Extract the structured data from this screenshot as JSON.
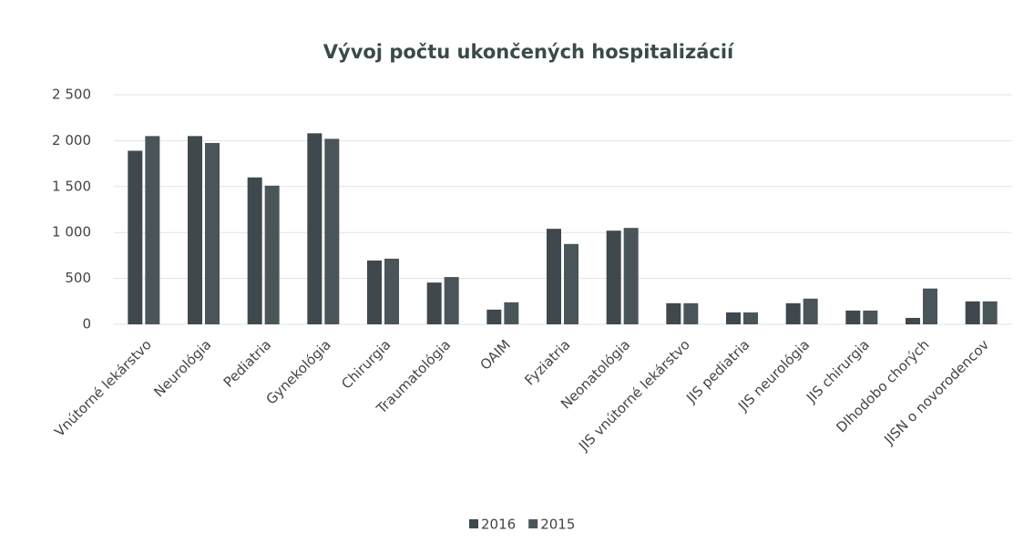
{
  "chart_data": {
    "type": "bar",
    "title": "Vývoj počtu ukončených hospitalizácií",
    "categories": [
      "Vnútorné lekárstvo",
      "Neurológia",
      "Pediatria",
      "Gynekológia",
      "Chirurgia",
      "Traumatológia",
      "OAIM",
      "Fyziatria",
      "Neonatológia",
      "JIS vnútorné lekárstvo",
      "JIS pediatria",
      "JIS neurológia",
      "JIS chirurgia",
      "Dlhodobo chorých",
      "JISN o novorodencov"
    ],
    "series": [
      {
        "name": "2016",
        "color": "#3e484d",
        "values": [
          1890,
          2050,
          1600,
          2080,
          695,
          455,
          160,
          1040,
          1020,
          230,
          130,
          230,
          150,
          70,
          250
        ]
      },
      {
        "name": "2015",
        "color": "#4a5559",
        "values": [
          2050,
          1975,
          1510,
          2020,
          715,
          515,
          240,
          875,
          1050,
          230,
          130,
          280,
          150,
          390,
          250
        ]
      }
    ],
    "ylim": [
      0,
      2500
    ],
    "yticks": [
      0,
      500,
      {
        "value": 1000,
        "label": "1 000"
      },
      {
        "value": 1500,
        "label": "1 500"
      },
      {
        "value": 2000,
        "label": "2 000"
      },
      {
        "value": 2500,
        "label": "2 500"
      }
    ],
    "grid": true,
    "legend": "bottom"
  }
}
